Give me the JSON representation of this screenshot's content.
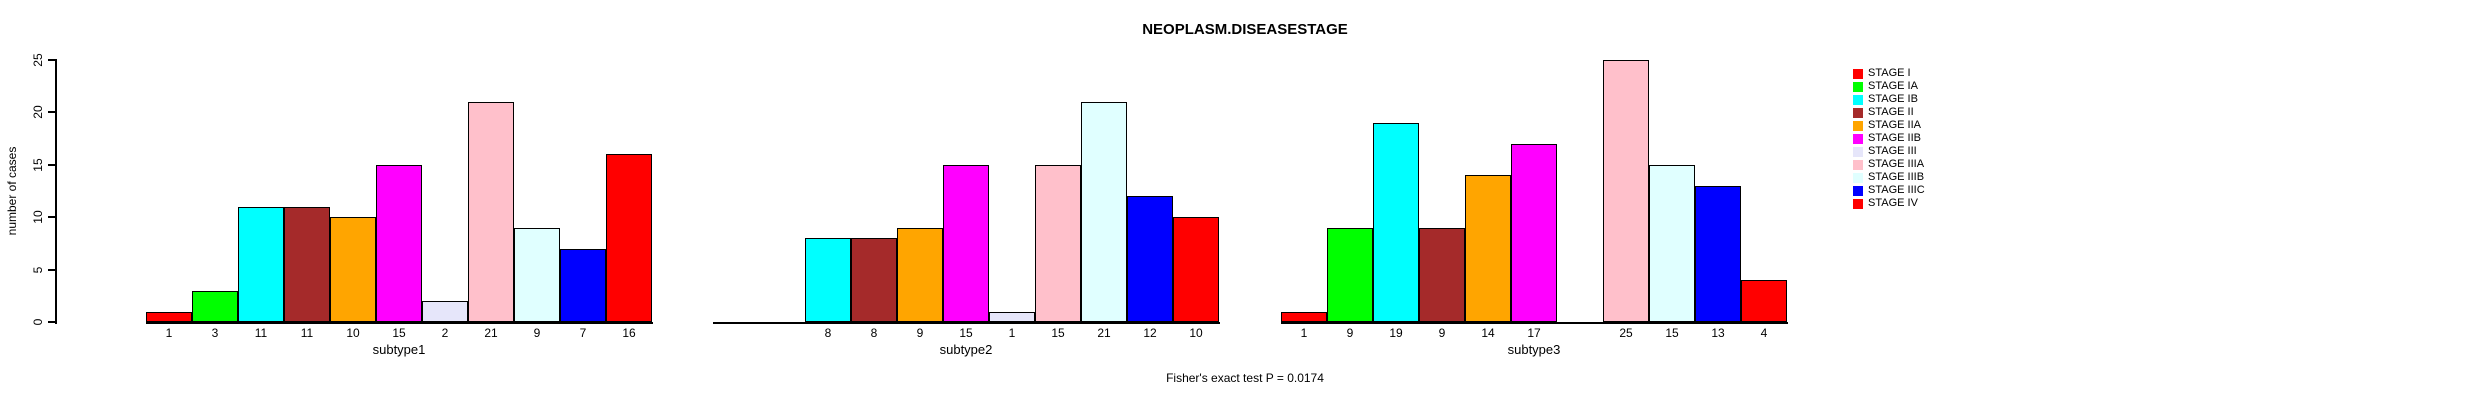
{
  "chart_data": {
    "type": "bar",
    "title": "NEOPLASM.DISEASESTAGE",
    "ylabel": "number of cases",
    "xlabel": "",
    "ylim": [
      0,
      25
    ],
    "yticks": [
      0,
      5,
      10,
      15,
      20,
      25
    ],
    "grid": false,
    "legend_position": "right",
    "bar_value_labels": true,
    "zero_bars_hidden": true,
    "groups": [
      "subtype1",
      "subtype2",
      "subtype3"
    ],
    "series": [
      {
        "name": "STAGE I",
        "color": "#FF0000",
        "values": [
          1,
          0,
          1
        ]
      },
      {
        "name": "STAGE IA",
        "color": "#00FF00",
        "values": [
          3,
          0,
          9
        ]
      },
      {
        "name": "STAGE IB",
        "color": "#00FFFF",
        "values": [
          11,
          8,
          19
        ]
      },
      {
        "name": "STAGE II",
        "color": "#A52A2A",
        "values": [
          11,
          8,
          9
        ]
      },
      {
        "name": "STAGE IIA",
        "color": "#FFA500",
        "values": [
          10,
          9,
          14
        ]
      },
      {
        "name": "STAGE IIB",
        "color": "#FF00FF",
        "values": [
          15,
          15,
          17
        ]
      },
      {
        "name": "STAGE III",
        "color": "#E6E6FA",
        "values": [
          2,
          1,
          0
        ]
      },
      {
        "name": "STAGE IIIA",
        "color": "#FFC0CB",
        "values": [
          21,
          15,
          25
        ]
      },
      {
        "name": "STAGE IIIB",
        "color": "#E0FFFF",
        "values": [
          9,
          21,
          15
        ]
      },
      {
        "name": "STAGE IIIC",
        "color": "#0000FF",
        "values": [
          7,
          12,
          13
        ]
      },
      {
        "name": "STAGE IV",
        "color": "#FF0000",
        "values": [
          16,
          10,
          4
        ]
      }
    ],
    "annotation": "Fisher's exact test P = 0.0174",
    "axis_color": "#000000"
  }
}
